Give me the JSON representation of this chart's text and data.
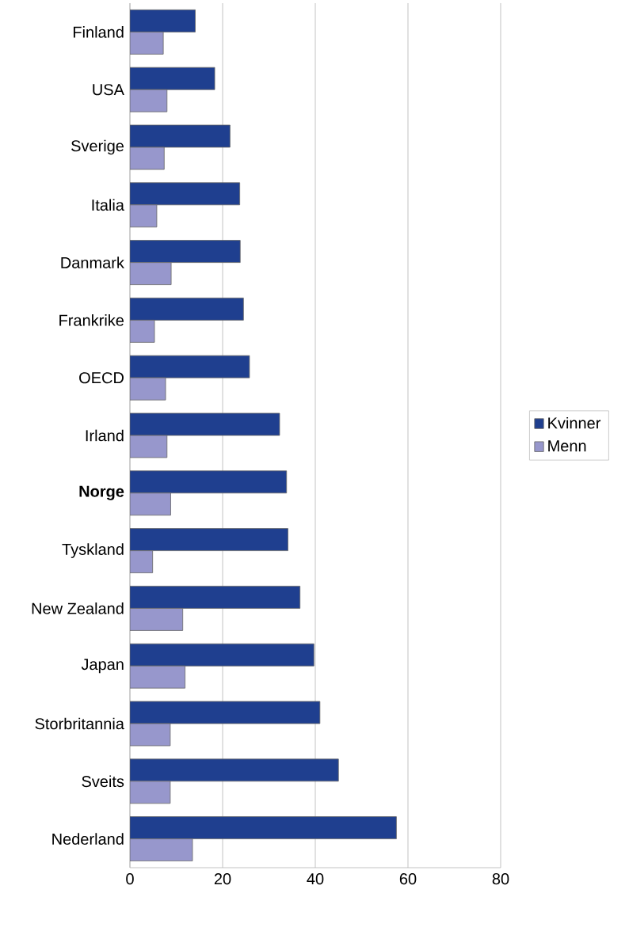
{
  "chart_data": {
    "type": "bar",
    "orientation": "horizontal",
    "categories": [
      "Finland",
      "USA",
      "Sverige",
      "Italia",
      "Danmark",
      "Frankrike",
      "OECD",
      "Irland",
      "**Norge**",
      "Tyskland",
      "New Zealand",
      "Japan",
      "Storbritannia",
      "Sveits",
      "Nederland"
    ],
    "series": [
      {
        "name": "Kvinner",
        "color": "#1f3f8f",
        "values": [
          14.1,
          18.3,
          21.6,
          23.7,
          23.8,
          24.5,
          25.8,
          32.3,
          33.8,
          34.1,
          36.7,
          39.7,
          41.0,
          45.0,
          57.5
        ]
      },
      {
        "name": "Menn",
        "color": "#9797cc",
        "values": [
          7.2,
          8.0,
          7.4,
          5.8,
          8.9,
          5.3,
          7.7,
          8.0,
          8.8,
          4.9,
          11.4,
          11.9,
          8.7,
          8.7,
          13.5
        ]
      }
    ],
    "xlim": [
      0,
      80
    ],
    "xticks": [
      0,
      20,
      40,
      60,
      80
    ],
    "grid": "x",
    "legend": "right"
  }
}
